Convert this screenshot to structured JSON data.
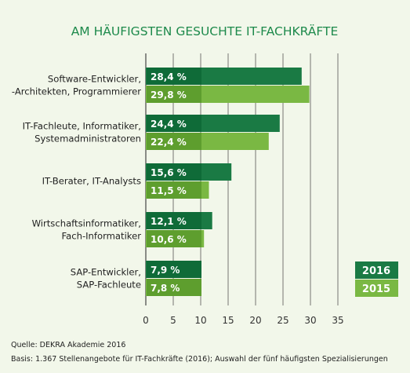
{
  "chart_data": {
    "type": "bar",
    "orientation": "horizontal",
    "title": "AM HÄUFIGSTEN GESUCHTE IT-FACHKRÄFTE",
    "categories": [
      [
        "Software-Entwickler,",
        "-Architekten, Programmierer"
      ],
      [
        "IT-Fachleute, Informatiker,",
        "Systemadministratoren"
      ],
      [
        "IT-Berater, IT-Analysts"
      ],
      [
        "Wirtschaftsinformatiker,",
        "Fach-Informatiker"
      ],
      [
        "SAP-Entwickler,",
        "SAP-Fachleute"
      ]
    ],
    "series": [
      {
        "name": "2016",
        "values": [
          28.4,
          24.4,
          15.6,
          12.1,
          7.9
        ],
        "labels": [
          "28,4 %",
          "24,4 %",
          "15,6 %",
          "12,1 %",
          "7,9 %"
        ],
        "color": "#1a7a44",
        "label_color": "#0f6b38"
      },
      {
        "name": "2015",
        "values": [
          29.8,
          22.4,
          11.5,
          10.6,
          7.8
        ],
        "labels": [
          "29,8 %",
          "22,4 %",
          "11,5 %",
          "10,6 %",
          "7,8 %"
        ],
        "color": "#7ab843",
        "label_color": "#5e9e2e"
      }
    ],
    "xlim": [
      0,
      35
    ],
    "xticks": [
      "0",
      "5",
      "10",
      "15",
      "20",
      "25",
      "30",
      "35"
    ],
    "grid": true,
    "legend_position": "right"
  },
  "footnotes": {
    "source": "Quelle: DEKRA Akademie 2016",
    "basis": "Basis: 1.367 Stellenangebote für IT-Fachkräfte (2016); Auswahl der fünf häufigsten Spezialisierungen"
  }
}
